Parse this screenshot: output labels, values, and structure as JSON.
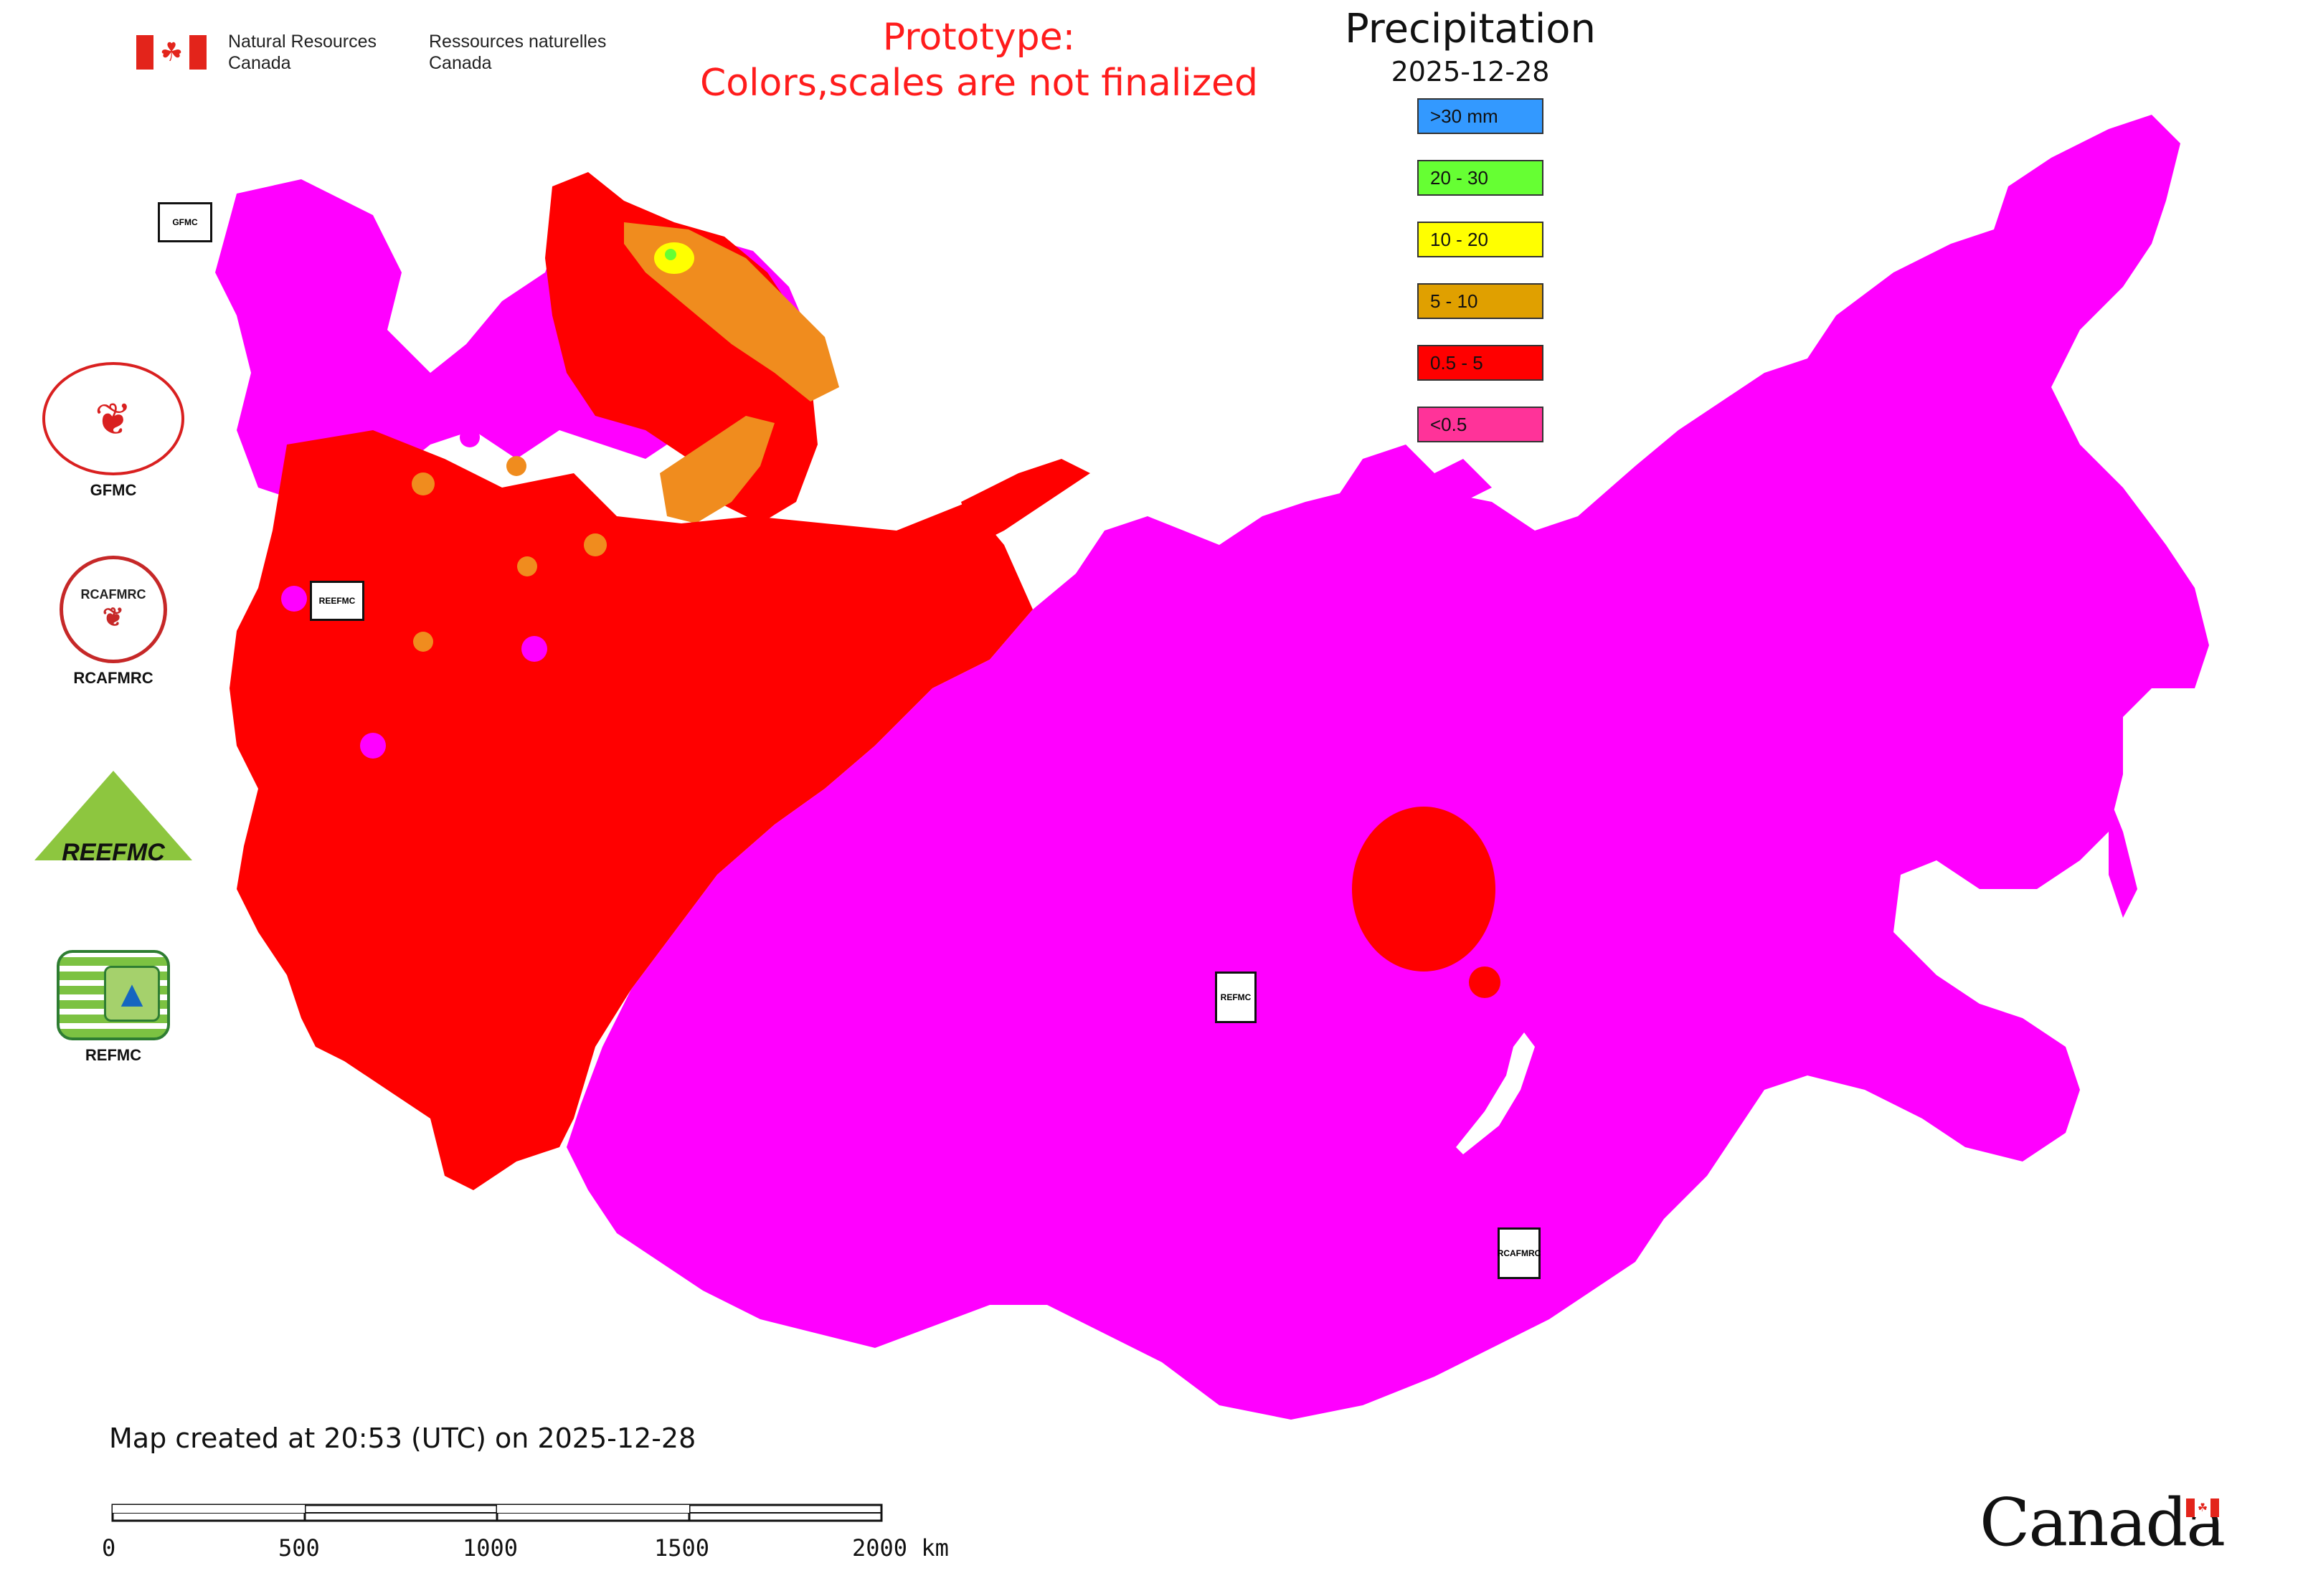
{
  "header": {
    "agency_en_line1": "Natural Resources",
    "agency_en_line2": "Canada",
    "agency_fr_line1": "Ressources naturelles",
    "agency_fr_line2": "Canada",
    "prototype_line1": "Prototype:",
    "prototype_line2": "Colors,scales are not finalized"
  },
  "legend": {
    "title": "Precipitation",
    "date": "2025-12-28",
    "items": [
      {
        "label": ">30 mm",
        "color": "#3399ff"
      },
      {
        "label": "20 - 30",
        "color": "#66ff33"
      },
      {
        "label": "10 - 20",
        "color": "#ffff00"
      },
      {
        "label": "5 - 10",
        "color": "#e0a000"
      },
      {
        "label": "0.5 - 5",
        "color": "#ff0000"
      },
      {
        "label": "<0.5",
        "color": "#ff3399"
      }
    ]
  },
  "map_colors": {
    "low": "#ff00ff",
    "red": "#ff0000",
    "orange": "#f08c1e",
    "yellow": "#ffff00",
    "green": "#66ff33"
  },
  "side_logos": {
    "gfmc": "GFMC",
    "rcafmrc": "RCAFMRC",
    "rcafmrc_badge": "RCAFMRC",
    "reefmc": "REEFMC",
    "refmc": "REFMC"
  },
  "map_badges": {
    "gfmc": "GFMC",
    "reefmc": "REEFMC",
    "refmc": "REFMC",
    "rcafmrc": "RCAFMRC"
  },
  "footer": {
    "created": "Map created at 20:53 (UTC) on 2025-12-28",
    "scale_labels": [
      "0",
      "500",
      "1000",
      "1500",
      "2000 km"
    ],
    "wordmark": "Canada"
  }
}
